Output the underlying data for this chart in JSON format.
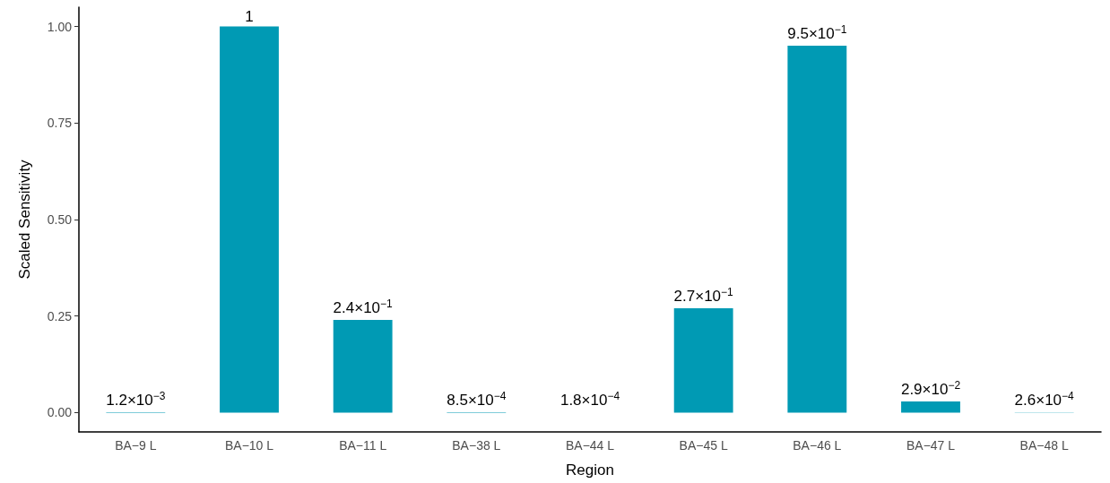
{
  "chart_data": {
    "type": "bar",
    "xlabel": "Region",
    "ylabel": "Scaled Sensitivity",
    "categories": [
      "BA−9 L",
      "BA−10 L",
      "BA−11 L",
      "BA−38 L",
      "BA−44 L",
      "BA−45 L",
      "BA−46 L",
      "BA−47 L",
      "BA−48 L"
    ],
    "values": [
      0.0012,
      1,
      0.24,
      0.00085,
      0.00018,
      0.27,
      0.95,
      0.029,
      0.00026
    ],
    "value_labels": [
      "1.2×10$^{−3}$",
      "1",
      "2.4×10$^{−1}$",
      "8.5×10$^{−4}$",
      "1.8×10$^{−4}$",
      "2.7×10$^{−1}$",
      "9.5×10$^{−1}$",
      "2.9×10$^{−2}$",
      "2.6×10$^{−4}$"
    ],
    "color": "#009ab4",
    "ylim": [
      -0.05,
      1.05
    ],
    "yticks": [
      {
        "value": 0,
        "label": "0.00"
      },
      {
        "value": 0.25,
        "label": "0.25"
      },
      {
        "value": 0.5,
        "label": "0.50"
      },
      {
        "value": 0.75,
        "label": "0.75"
      },
      {
        "value": 1,
        "label": "1.00"
      }
    ],
    "grid": false
  }
}
